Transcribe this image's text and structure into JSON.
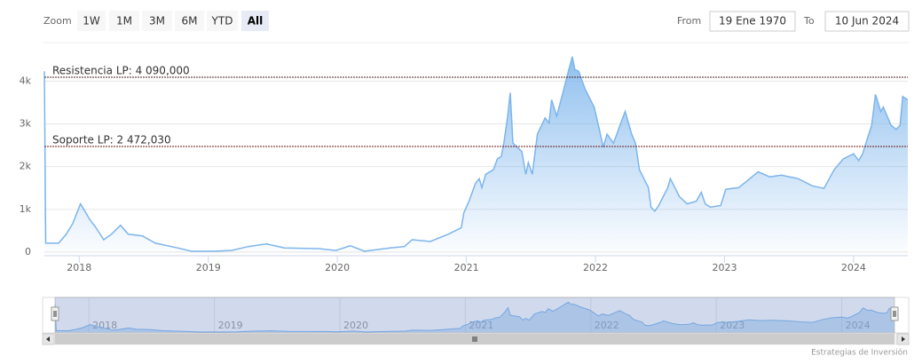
{
  "range_selector": {
    "zoom_label": "Zoom",
    "buttons": [
      "1W",
      "1M",
      "3M",
      "6M",
      "YTD",
      "All"
    ],
    "selected_button": 5,
    "from_label": "From",
    "from": "19 Ene 1970",
    "to_label": "To",
    "to": "10 Jun 2024"
  },
  "credits": "Estrategias de Inversión",
  "chart_data": {
    "type": "area",
    "series": [
      {
        "color": "#7cb5ec",
        "x": [
          2017.73,
          2017.74,
          2017.84,
          2017.9,
          2017.95,
          2018.01,
          2018.04,
          2018.08,
          2018.13,
          2018.19,
          2018.25,
          2018.32,
          2018.38,
          2018.49,
          2018.59,
          2018.76,
          2018.87,
          2018.97,
          2019.04,
          2019.18,
          2019.31,
          2019.45,
          2019.59,
          2019.86,
          2019.99,
          2020.1,
          2020.21,
          2020.41,
          2020.52,
          2020.58,
          2020.72,
          2020.86,
          2020.96,
          2020.98,
          2021.02,
          2021.07,
          2021.1,
          2021.12,
          2021.15,
          2021.21,
          2021.24,
          2021.27,
          2021.29,
          2021.32,
          2021.34,
          2021.36,
          2021.43,
          2021.46,
          2021.48,
          2021.51,
          2021.55,
          2021.61,
          2021.64,
          2021.66,
          2021.7,
          2021.74,
          2021.79,
          2021.82,
          2021.84,
          2021.87,
          2021.92,
          2021.99,
          2022.03,
          2022.06,
          2022.09,
          2022.14,
          2022.19,
          2022.23,
          2022.28,
          2022.31,
          2022.34,
          2022.41,
          2022.43,
          2022.46,
          2022.49,
          2022.56,
          2022.58,
          2022.65,
          2022.71,
          2022.78,
          2022.82,
          2022.85,
          2022.89,
          2022.97,
          2023.01,
          2023.11,
          2023.18,
          2023.26,
          2023.35,
          2023.44,
          2023.57,
          2023.68,
          2023.77,
          2023.85,
          2023.92,
          2024.0,
          2024.04,
          2024.07,
          2024.14,
          2024.17,
          2024.21,
          2024.23,
          2024.29,
          2024.33,
          2024.36,
          2024.38,
          2024.42
        ],
        "values": [
          4230,
          210,
          210,
          420,
          670,
          1130,
          980,
          770,
          570,
          290,
          420,
          630,
          420,
          380,
          210,
          100,
          20,
          20,
          20,
          40,
          130,
          190,
          100,
          80,
          40,
          150,
          20,
          100,
          130,
          290,
          250,
          420,
          570,
          920,
          1190,
          1610,
          1720,
          1510,
          1820,
          1930,
          2180,
          2240,
          2550,
          3180,
          3730,
          2550,
          2350,
          1820,
          2090,
          1820,
          2760,
          3140,
          3020,
          3560,
          3180,
          3640,
          4230,
          4570,
          4270,
          4230,
          3810,
          3390,
          2870,
          2450,
          2760,
          2550,
          2970,
          3290,
          2760,
          2550,
          1930,
          1510,
          1050,
          960,
          1090,
          1510,
          1720,
          1300,
          1130,
          1190,
          1400,
          1130,
          1050,
          1090,
          1470,
          1510,
          1680,
          1880,
          1760,
          1800,
          1720,
          1550,
          1490,
          1930,
          2180,
          2300,
          2140,
          2300,
          2970,
          3690,
          3290,
          3390,
          2970,
          2870,
          2970,
          3640,
          3560
        ]
      }
    ],
    "xlim": [
      2017.73,
      2024.42
    ],
    "xticks": [
      2018,
      2019,
      2020,
      2021,
      2022,
      2023,
      2024
    ],
    "ylim": [
      0,
      4900
    ],
    "yticks": [
      0,
      {
        "value": 1000,
        "label": "1k"
      },
      {
        "value": 2000,
        "label": "2k"
      },
      {
        "value": 3000,
        "label": "3k"
      },
      {
        "value": 4000,
        "label": "4k"
      }
    ],
    "grid": true,
    "plot_lines": [
      {
        "value": 4090,
        "label": "Resistencia LP: 4 090,000",
        "color": "#4a2020"
      },
      {
        "value": 2472,
        "label": "Soporte LP: 2 472,030",
        "color": "#6b1a1a"
      }
    ]
  }
}
